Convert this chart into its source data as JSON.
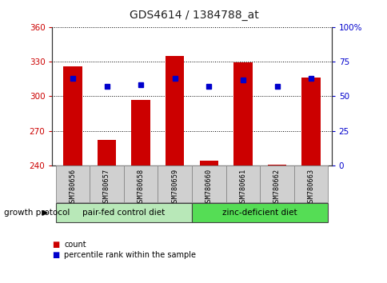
{
  "title": "GDS4614 / 1384788_at",
  "samples": [
    "GSM780656",
    "GSM780657",
    "GSM780658",
    "GSM780659",
    "GSM780660",
    "GSM780661",
    "GSM780662",
    "GSM780663"
  ],
  "counts": [
    326,
    262,
    297,
    335,
    244,
    329,
    241,
    316
  ],
  "percentiles": [
    63,
    57,
    58,
    63,
    57,
    62,
    57,
    63
  ],
  "ylim_left": [
    240,
    360
  ],
  "ylim_right": [
    0,
    100
  ],
  "yticks_left": [
    240,
    270,
    300,
    330,
    360
  ],
  "yticks_right": [
    0,
    25,
    50,
    75,
    100
  ],
  "ytick_labels_right": [
    "0",
    "25",
    "50",
    "75",
    "100%"
  ],
  "groups": [
    {
      "label": "pair-fed control diet",
      "start": 0,
      "end": 4,
      "color": "#b8e8b8"
    },
    {
      "label": "zinc-deficient diet",
      "start": 4,
      "end": 8,
      "color": "#55dd55"
    }
  ],
  "group_label": "growth protocol",
  "bar_color": "#cc0000",
  "dot_color": "#0000cc",
  "bar_bottom": 240,
  "bar_width": 0.55,
  "legend_items": [
    {
      "label": "count",
      "color": "#cc0000"
    },
    {
      "label": "percentile rank within the sample",
      "color": "#0000cc"
    }
  ],
  "tick_color_left": "#cc0000",
  "tick_color_right": "#0000cc",
  "label_gray": "#d0d0d0",
  "label_gray_edge": "#888888"
}
